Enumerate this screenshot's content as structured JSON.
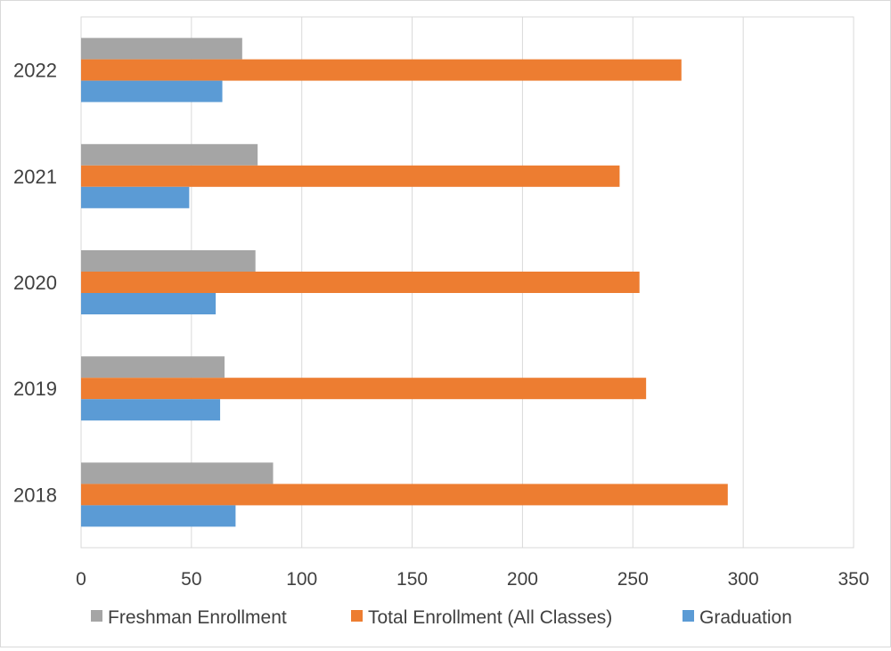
{
  "chart_data": {
    "type": "bar",
    "orientation": "horizontal",
    "title": "",
    "xlabel": "",
    "ylabel": "",
    "xlim": [
      0,
      350
    ],
    "x_ticks": [
      "0",
      "50",
      "100",
      "150",
      "200",
      "250",
      "300",
      "350"
    ],
    "grid": true,
    "legend_position": "bottom",
    "categories": [
      "2018",
      "2019",
      "2020",
      "2021",
      "2022"
    ],
    "series": [
      {
        "name": "Graduation",
        "color": "#5b9bd5",
        "values": [
          70,
          63,
          61,
          49,
          64
        ]
      },
      {
        "name": "Total Enrollment (All Classes)",
        "color": "#ed7d31",
        "values": [
          293,
          256,
          253,
          244,
          272
        ]
      },
      {
        "name": "Freshman Enrollment",
        "color": "#a5a5a5",
        "values": [
          87,
          65,
          79,
          80,
          73
        ]
      }
    ],
    "legend_order": [
      "Freshman Enrollment",
      "Total Enrollment (All Classes)",
      "Graduation"
    ]
  }
}
